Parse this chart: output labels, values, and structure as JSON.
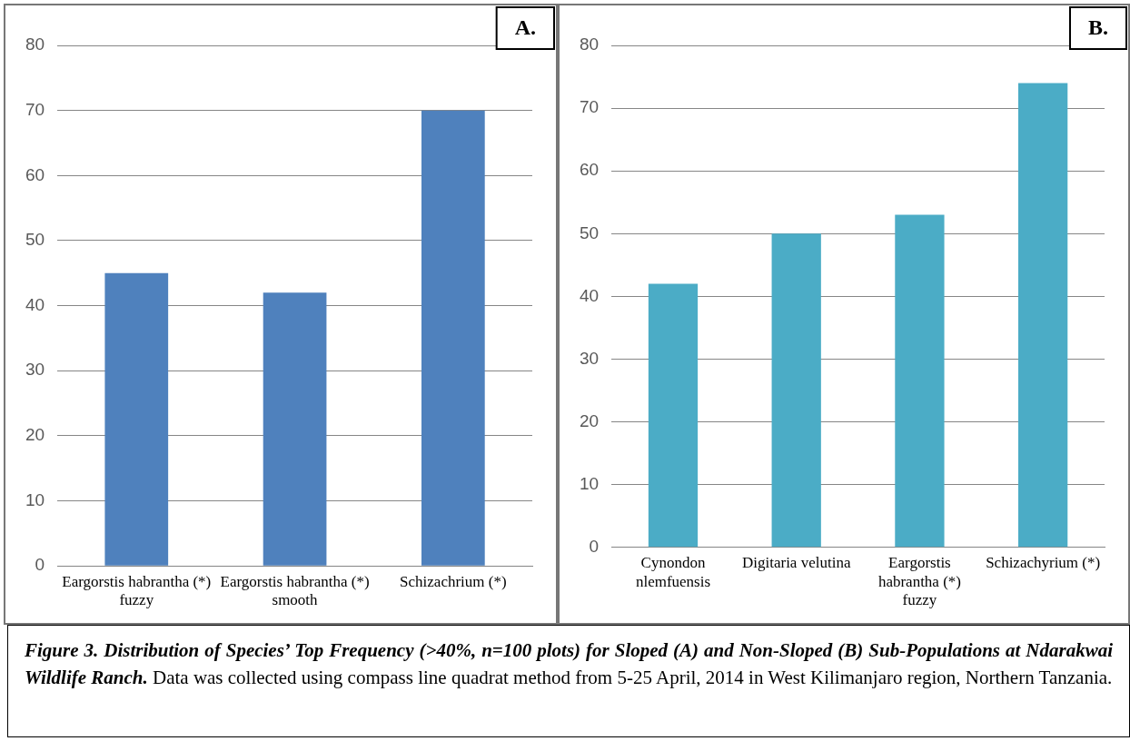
{
  "chart_data": [
    {
      "type": "bar",
      "title": "A.",
      "categories": [
        "Eargorstis habrantha (*) fuzzy",
        "Eargorstis habrantha (*) smooth",
        "Schizachrium (*)"
      ],
      "values": [
        45,
        42,
        70
      ],
      "color": "#4f81bd",
      "ylim": [
        0,
        80
      ],
      "yticks": [
        0,
        10,
        20,
        30,
        40,
        50,
        60,
        70,
        80
      ],
      "grid": "y"
    },
    {
      "type": "bar",
      "title": "B.",
      "categories": [
        "Cynondon nlemfuensis",
        "Digitaria velutina",
        "Eargorstis habrantha (*) fuzzy",
        "Schizachyrium (*)"
      ],
      "values": [
        42,
        50,
        53,
        74
      ],
      "color": "#4bacc6",
      "ylim": [
        0,
        80
      ],
      "yticks": [
        0,
        10,
        20,
        30,
        40,
        50,
        60,
        70,
        80
      ],
      "grid": "y"
    },
    {
      "type": "other",
      "annotations": [
        "Figure 3. Distribution of Species’ Top Frequency (>40%, n=100 plots) for Sloped (A) and Non-Sloped (B) Sub-Populations at Ndarakwai Wildlife Ranch.",
        "Data was collected using compass line quadrat method from 5-25 April, 2014 in West Kilimanjaro region, Northern Tanzania."
      ]
    }
  ]
}
